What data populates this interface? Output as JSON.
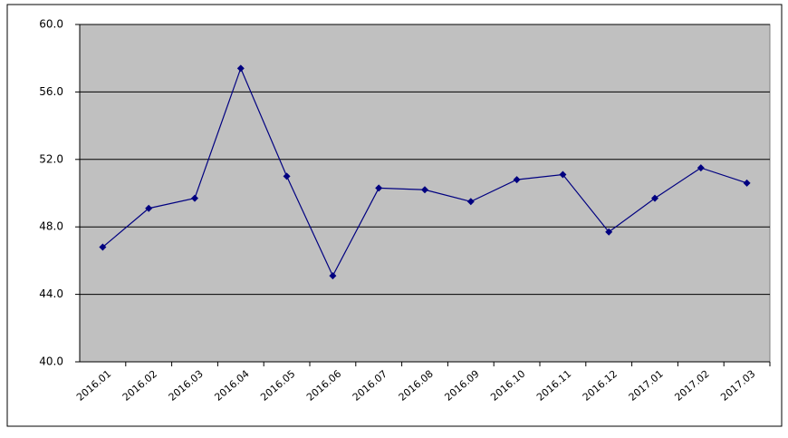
{
  "chart_data": {
    "type": "line",
    "categories": [
      "2016.01",
      "2016.02",
      "2016.03",
      "2016.04",
      "2016.05",
      "2016.06",
      "2016.07",
      "2016.08",
      "2016.09",
      "2016.10",
      "2016.11",
      "2016.12",
      "2017.01",
      "2017.02",
      "2017.03"
    ],
    "values": [
      46.8,
      49.1,
      49.7,
      57.4,
      51.0,
      45.1,
      50.3,
      50.2,
      49.5,
      50.8,
      51.1,
      47.7,
      49.7,
      51.5,
      50.6
    ],
    "color": "#000080",
    "ylim": [
      40,
      60
    ],
    "yticks": [
      {
        "value": 40,
        "label": "40.0"
      },
      {
        "value": 44,
        "label": "44.0"
      },
      {
        "value": 48,
        "label": "48.0"
      },
      {
        "value": 52,
        "label": "52.0"
      },
      {
        "value": 56,
        "label": "56.0"
      },
      {
        "value": 60,
        "label": "60.0"
      }
    ],
    "grid": true
  }
}
